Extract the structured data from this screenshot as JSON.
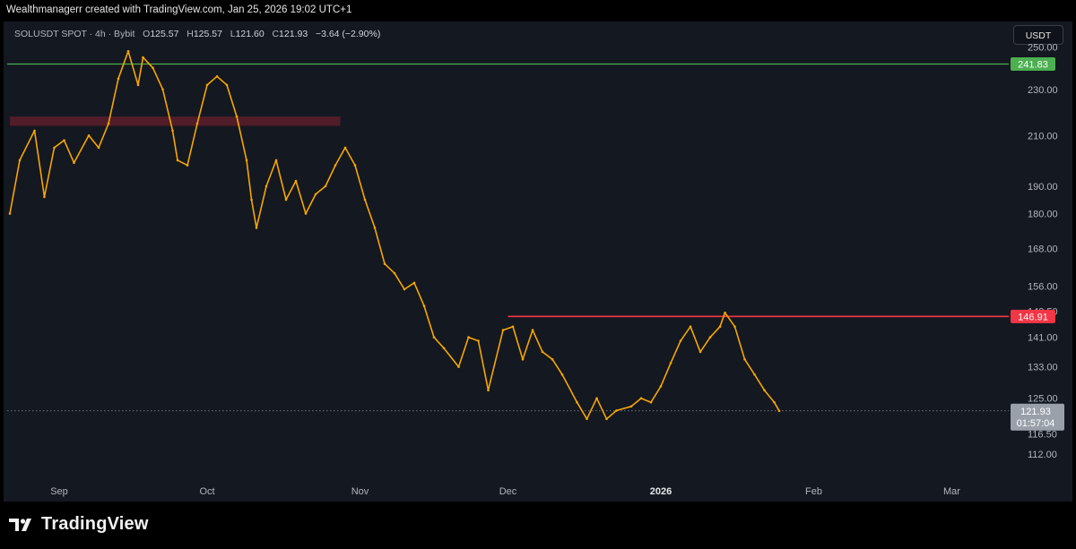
{
  "credit": "Wealthmanagerr created with TradingView.com, Jan 25, 2026 19:02 UTC+1",
  "symbol": {
    "name": "SOLUSDT SPOT · 4h · Bybit",
    "o_label": "O",
    "o": "125.57",
    "h_label": "H",
    "h": "125.57",
    "l_label": "L",
    "l": "121.60",
    "c_label": "C",
    "c": "121.93",
    "change": "−3.64 (−2.90%)"
  },
  "currency_button": "USDT",
  "logo_text": "TradingView",
  "colors": {
    "background": "#141821",
    "candle": "#f7a600",
    "support_line": "#4caf50",
    "resistance_line": "#f23645",
    "zone": "#5a1f2a",
    "axis_text": "#b2b5be"
  },
  "chart_data": {
    "type": "line",
    "title": "SOLUSDT SPOT · 4h · Bybit",
    "y_scale": "log",
    "ylim": [
      107.5,
      263
    ],
    "y_ticks": [
      "250.00",
      "230.00",
      "210.00",
      "190.00",
      "180.00",
      "168.00",
      "156.00",
      "148.50",
      "141.00",
      "133.00",
      "125.00",
      "116.50",
      "112.00"
    ],
    "x_ticks": [
      {
        "label": "Sep",
        "date": "2025-09-01"
      },
      {
        "label": "Oct",
        "date": "2025-10-01"
      },
      {
        "label": "Nov",
        "date": "2025-11-01"
      },
      {
        "label": "Dec",
        "date": "2025-12-01"
      },
      {
        "label": "2026",
        "date": "2026-01-01"
      },
      {
        "label": "Feb",
        "date": "2026-02-01"
      },
      {
        "label": "Mar",
        "date": "2026-03-01"
      }
    ],
    "series": [
      {
        "x": [
          "2025-08-22",
          "2025-08-24",
          "2025-08-27",
          "2025-08-29",
          "2025-08-31",
          "2025-09-02",
          "2025-09-04",
          "2025-09-07",
          "2025-09-09",
          "2025-09-11",
          "2025-09-13",
          "2025-09-15",
          "2025-09-17",
          "2025-09-18",
          "2025-09-20",
          "2025-09-22",
          "2025-09-24",
          "2025-09-25",
          "2025-09-27",
          "2025-09-29",
          "2025-10-01",
          "2025-10-03",
          "2025-10-05",
          "2025-10-07",
          "2025-10-09",
          "2025-10-10",
          "2025-10-11",
          "2025-10-13",
          "2025-10-15",
          "2025-10-17",
          "2025-10-19",
          "2025-10-21",
          "2025-10-23",
          "2025-10-25",
          "2025-10-27",
          "2025-10-29",
          "2025-10-31",
          "2025-11-02",
          "2025-11-04",
          "2025-11-06",
          "2025-11-08",
          "2025-11-10",
          "2025-11-12",
          "2025-11-14",
          "2025-11-16",
          "2025-11-18",
          "2025-11-21",
          "2025-11-23",
          "2025-11-25",
          "2025-11-27",
          "2025-11-30",
          "2025-12-02",
          "2025-12-04",
          "2025-12-06",
          "2025-12-08",
          "2025-12-10",
          "2025-12-12",
          "2025-12-15",
          "2025-12-17",
          "2025-12-19",
          "2025-12-21",
          "2025-12-23",
          "2025-12-26",
          "2025-12-28",
          "2025-12-30",
          "2026-01-01",
          "2026-01-03",
          "2026-01-05",
          "2026-01-07",
          "2026-01-09",
          "2026-01-11",
          "2026-01-13",
          "2026-01-14",
          "2026-01-16",
          "2026-01-18",
          "2026-01-20",
          "2026-01-22",
          "2026-01-24",
          "2026-01-25"
        ],
        "y": [
          180,
          200,
          212,
          186,
          205,
          208,
          199,
          210,
          205,
          215,
          235,
          248,
          232,
          245,
          240,
          230,
          212,
          200,
          198,
          215,
          232,
          236,
          232,
          218,
          200,
          185,
          175,
          190,
          200,
          185,
          192,
          180,
          187,
          190,
          198,
          205,
          198,
          185,
          175,
          163,
          160,
          155,
          157,
          150,
          141,
          138,
          133,
          141,
          140,
          127,
          143,
          144,
          135,
          143,
          137,
          135,
          131,
          124,
          120,
          125,
          120,
          122,
          123,
          125,
          124,
          128,
          134,
          140,
          144,
          137,
          141,
          144,
          148,
          144,
          135,
          131,
          127,
          124,
          121.93
        ]
      }
    ],
    "reference_lines": [
      {
        "label": "241.83",
        "value": 241.83,
        "color": "#4caf50"
      },
      {
        "label": "146.91",
        "value": 146.91,
        "color": "#f23645",
        "start": "2025-12-01"
      }
    ],
    "zone": {
      "from": 214,
      "to": 218,
      "start": "2025-08-22",
      "end": "2025-10-28"
    },
    "last_price": {
      "label": "121.93",
      "countdown": "01:57:04",
      "value": 121.93
    },
    "grid": false
  }
}
